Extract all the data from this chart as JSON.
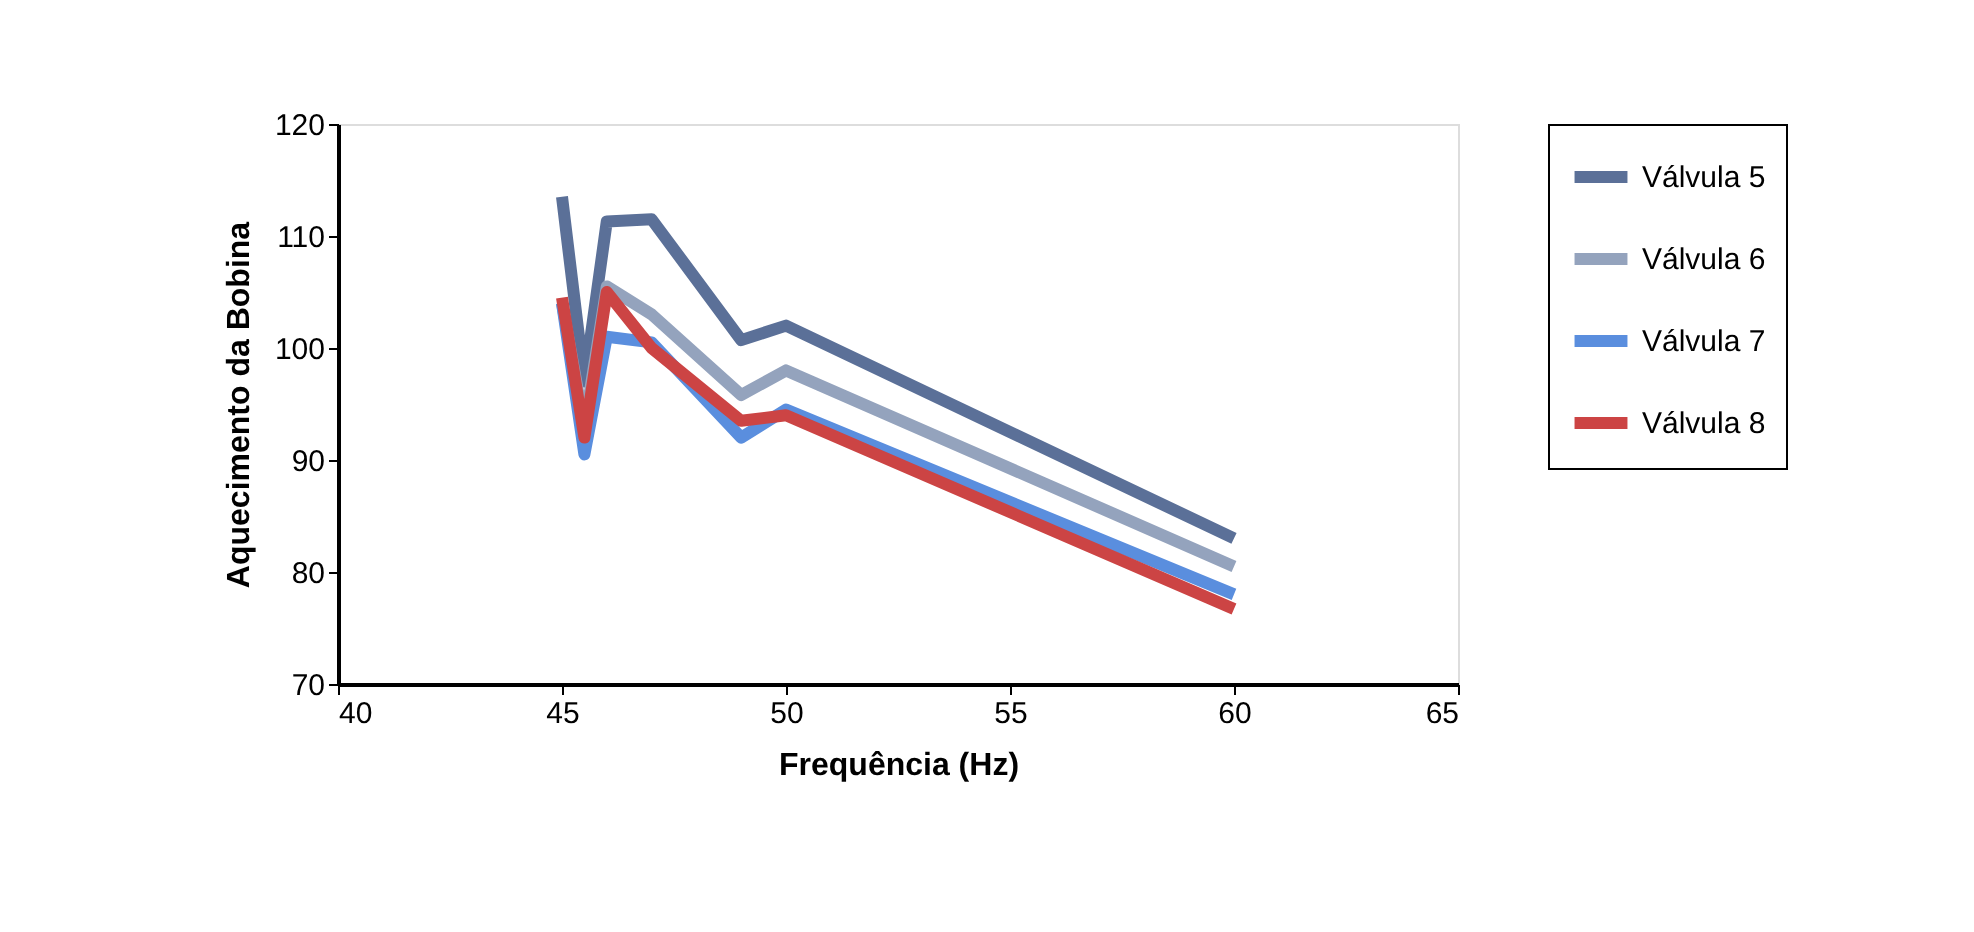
{
  "chart_data": {
    "type": "line",
    "xlabel": "Frequência (Hz)",
    "ylabel": "Aquecimento da Bobina",
    "x": [
      45,
      45.5,
      46,
      47,
      49,
      50,
      60
    ],
    "xlim": [
      40,
      65
    ],
    "xticks": [
      40,
      45,
      50,
      55,
      60,
      65
    ],
    "ylim": [
      70,
      120
    ],
    "yticks": [
      70,
      80,
      90,
      100,
      110,
      120
    ],
    "grid": false,
    "legend": "right",
    "line_style": "solid",
    "marker": "none",
    "series": [
      {
        "name": "Válvula 5",
        "color": "#5b7098",
        "values": [
          113.5,
          97,
          111.3,
          111.5,
          100.7,
          102,
          83
        ]
      },
      {
        "name": "Válvula 6",
        "color": "#94a3bd",
        "values": [
          104,
          93,
          105.5,
          103,
          95.8,
          98,
          80.5
        ]
      },
      {
        "name": "Válvula 7",
        "color": "#5a8ede",
        "values": [
          104,
          90.5,
          101,
          100.5,
          92,
          94.5,
          78
        ]
      },
      {
        "name": "Válvula 8",
        "color": "#cc4444",
        "values": [
          104.5,
          92,
          105,
          100,
          93.5,
          94,
          76.7
        ]
      }
    ]
  }
}
